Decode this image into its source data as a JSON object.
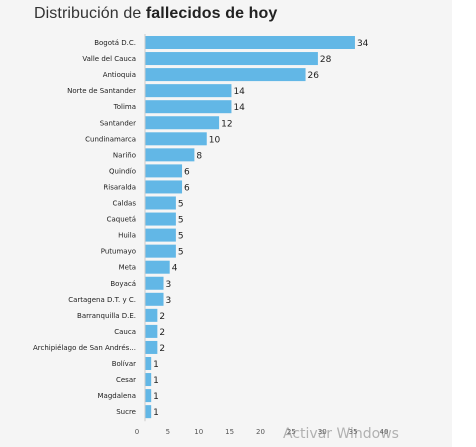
{
  "title": {
    "prefix": "Distribución de ",
    "bold": "fallecidos de hoy"
  },
  "watermark": "Activar Windows",
  "colors": {
    "bar": "#62b7e6",
    "background": "#f5f5f5",
    "text": "#222222",
    "axis": "#555555"
  },
  "chart_data": {
    "type": "bar",
    "orientation": "horizontal",
    "categories": [
      "Bogotá D.C.",
      "Valle del Cauca",
      "Antioquia",
      "Norte de Santander",
      "Tolima",
      "Santander",
      "Cundinamarca",
      "Nariño",
      "Quindío",
      "Risaralda",
      "Caldas",
      "Caquetá",
      "Huila",
      "Putumayo",
      "Meta",
      "Boyacá",
      "Cartagena D.T. y C.",
      "Barranquilla D.E.",
      "Cauca",
      "Archipiélago de San Andrés...",
      "Bolívar",
      "Cesar",
      "Magdalena",
      "Sucre"
    ],
    "values": [
      34,
      28,
      26,
      14,
      14,
      12,
      10,
      8,
      6,
      6,
      5,
      5,
      5,
      5,
      4,
      3,
      3,
      2,
      2,
      2,
      1,
      1,
      1,
      1
    ],
    "x_ticks": [
      "0",
      "5",
      "10",
      "15",
      "20",
      "25",
      "30",
      "35",
      "40"
    ],
    "xlim": [
      0,
      40
    ],
    "grid": false,
    "data_labels": true
  }
}
